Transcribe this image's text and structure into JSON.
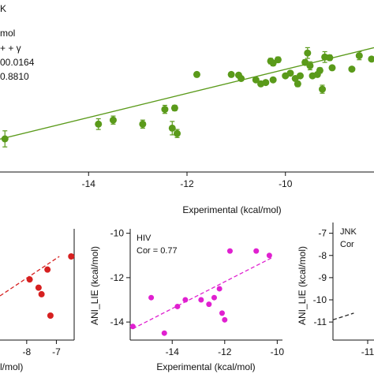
{
  "chart_data": [
    {
      "type": "scatter",
      "panel": "main",
      "legend_fragments": [
        "K",
        "mol",
        "+ + γ",
        "00.0164",
        "0.8810"
      ],
      "xlabel": "Experimental (kcal/mol)",
      "ylabel": "",
      "x_ticks": [
        "-14",
        "-12",
        "-10"
      ],
      "xlim": [
        -15.8,
        -8.2
      ],
      "ylim": [
        -16,
        -6
      ],
      "color": "#5a9a1a",
      "fit_line": [
        [
          -16.0,
          -14.2
        ],
        [
          -8.2,
          -7.2
        ]
      ],
      "points": [
        {
          "x": -15.7,
          "y": -14.0,
          "err": 0.6
        },
        {
          "x": -13.8,
          "y": -12.9,
          "err": 0.4
        },
        {
          "x": -13.5,
          "y": -12.6,
          "err": 0.3
        },
        {
          "x": -12.9,
          "y": -12.9,
          "err": 0.3
        },
        {
          "x": -12.45,
          "y": -11.8,
          "err": 0.3
        },
        {
          "x": -12.25,
          "y": -11.7,
          "err": 0.2
        },
        {
          "x": -12.3,
          "y": -13.2,
          "err": 0.5
        },
        {
          "x": -12.2,
          "y": -13.6,
          "err": 0.3
        },
        {
          "x": -11.8,
          "y": -9.2,
          "err": 0.1
        },
        {
          "x": -11.1,
          "y": -9.2,
          "err": 0.1
        },
        {
          "x": -10.95,
          "y": -9.25,
          "err": 0.1
        },
        {
          "x": -10.9,
          "y": -9.5,
          "err": 0.1
        },
        {
          "x": -10.6,
          "y": -9.6,
          "err": 0.1
        },
        {
          "x": -10.5,
          "y": -9.9,
          "err": 0.1
        },
        {
          "x": -10.4,
          "y": -9.8,
          "err": 0.1
        },
        {
          "x": -10.25,
          "y": -9.6,
          "err": 0.1
        },
        {
          "x": -10.3,
          "y": -8.2,
          "err": 0.2
        },
        {
          "x": -10.25,
          "y": -8.35,
          "err": 0.2
        },
        {
          "x": -10.15,
          "y": -8.1,
          "err": 0.2
        },
        {
          "x": -10.0,
          "y": -9.3,
          "err": 0.1
        },
        {
          "x": -9.9,
          "y": -9.1,
          "err": 0.1
        },
        {
          "x": -9.8,
          "y": -9.5,
          "err": 0.1
        },
        {
          "x": -9.75,
          "y": -9.9,
          "err": 0.2
        },
        {
          "x": -9.7,
          "y": -9.3,
          "err": 0.1
        },
        {
          "x": -9.6,
          "y": -8.3,
          "err": 0.2
        },
        {
          "x": -9.55,
          "y": -7.6,
          "err": 0.4
        },
        {
          "x": -9.5,
          "y": -8.55,
          "err": 0.3
        },
        {
          "x": -9.45,
          "y": -9.3,
          "err": 0.1
        },
        {
          "x": -9.35,
          "y": -9.2,
          "err": 0.1
        },
        {
          "x": -9.3,
          "y": -8.9,
          "err": 0.2
        },
        {
          "x": -9.25,
          "y": -10.3,
          "err": 0.3
        },
        {
          "x": -9.2,
          "y": -7.9,
          "err": 0.4
        },
        {
          "x": -9.1,
          "y": -7.95,
          "err": 0.2
        },
        {
          "x": -9.05,
          "y": -8.7,
          "err": 0.1
        },
        {
          "x": -8.65,
          "y": -8.8,
          "err": 0.1
        },
        {
          "x": -8.5,
          "y": -7.8,
          "err": 0.3
        },
        {
          "x": -8.25,
          "y": -8.05,
          "err": 0.1
        }
      ]
    },
    {
      "type": "scatter",
      "panel": "left-partial",
      "xlabel": "l/mol)",
      "ylabel": "",
      "x_ticks": [
        "-8",
        "-7"
      ],
      "xlim": [
        -8.9,
        -6.4
      ],
      "ylim": [
        -12,
        -6
      ],
      "color": "#d62020",
      "fit_line": [
        [
          -8.9,
          -9.6
        ],
        [
          -6.9,
          -7.2
        ]
      ],
      "points": [
        {
          "x": -7.3,
          "y": -8.0
        },
        {
          "x": -7.9,
          "y": -8.6
        },
        {
          "x": -7.6,
          "y": -9.1
        },
        {
          "x": -7.5,
          "y": -9.5
        },
        {
          "x": -7.2,
          "y": -10.8
        },
        {
          "x": -6.5,
          "y": -7.2
        }
      ]
    },
    {
      "type": "scatter",
      "panel": "HIV",
      "title": "HIV",
      "annotation": "Cor = 0.77",
      "xlabel": "Experimental (kcal/mol)",
      "ylabel": "ANI_LIE (kcal/mol)",
      "x_ticks": [
        "-14",
        "-12",
        "-10"
      ],
      "y_ticks": [
        "-10",
        "-12",
        "-14"
      ],
      "xlim": [
        -15.6,
        -9.8
      ],
      "ylim": [
        -14.6,
        -9.8
      ],
      "color": "#e020d0",
      "fit_line": [
        [
          -15.5,
          -14.3
        ],
        [
          -10.2,
          -11.1
        ]
      ],
      "points": [
        {
          "x": -15.5,
          "y": -14.2
        },
        {
          "x": -14.8,
          "y": -12.9
        },
        {
          "x": -14.3,
          "y": -14.5
        },
        {
          "x": -13.8,
          "y": -13.3
        },
        {
          "x": -13.5,
          "y": -13.0
        },
        {
          "x": -12.9,
          "y": -13.0
        },
        {
          "x": -12.6,
          "y": -13.2
        },
        {
          "x": -12.4,
          "y": -12.9
        },
        {
          "x": -12.2,
          "y": -12.5
        },
        {
          "x": -12.1,
          "y": -13.6
        },
        {
          "x": -12.0,
          "y": -13.9
        },
        {
          "x": -11.8,
          "y": -10.8
        },
        {
          "x": -10.8,
          "y": -10.8
        },
        {
          "x": -10.3,
          "y": -11.0
        }
      ]
    },
    {
      "type": "scatter",
      "panel": "right-partial",
      "title": "JNK",
      "annotation": "Cor",
      "xlabel": "",
      "ylabel": "ANI_LIE (kcal/mol)",
      "x_ticks": [
        "-11"
      ],
      "y_ticks": [
        "-7",
        "-8",
        "-9",
        "-10",
        "-11"
      ],
      "xlim": [
        -11.5,
        -10.5
      ],
      "ylim": [
        -11.6,
        -6.8
      ],
      "color": "#222222",
      "fit_line": [
        [
          -11.5,
          -10.9
        ],
        [
          -11.2,
          -10.6
        ]
      ],
      "points": []
    }
  ]
}
